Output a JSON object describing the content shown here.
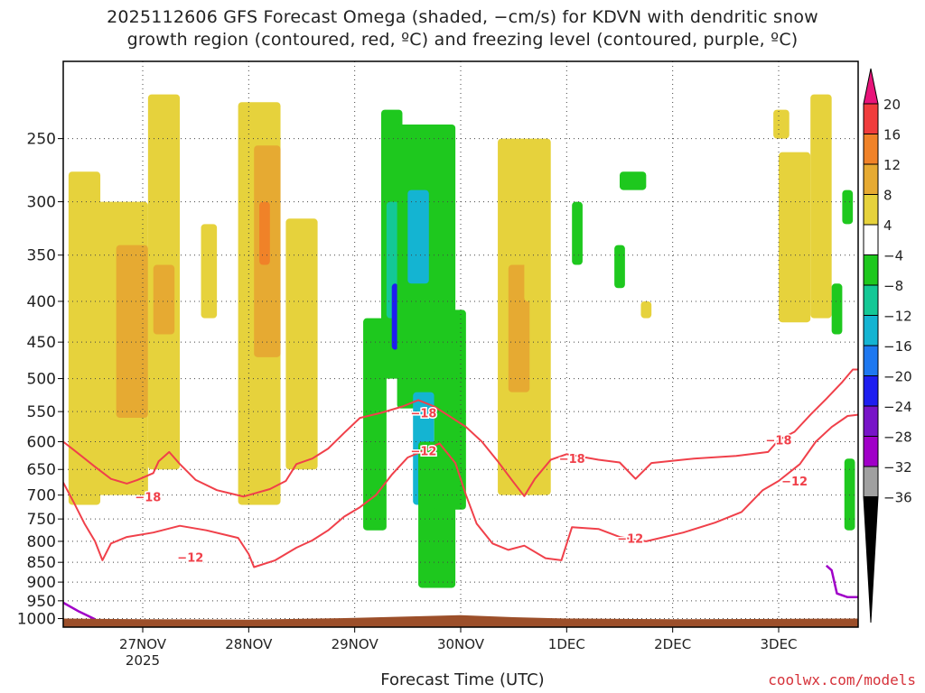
{
  "title_line1": "2025112606 GFS Forecast Omega (shaded, −cm/s) for KDVN with dendritic snow",
  "title_line2": "growth region (contoured, red, ºC) and freezing level (contoured, purple, ºC)",
  "xaxis_title": "Forecast Time (UTC)",
  "credit": "coolwx.com/models",
  "colors": {
    "ground": "#9c4f2a",
    "red_contour": "#f0404a",
    "purple_contour": "#a000c8",
    "grid": "#444444"
  },
  "chart_data": {
    "type": "heatmap",
    "x_ticks": [
      {
        "x": 27.0,
        "label": "27NOV",
        "sublabel": "2025"
      },
      {
        "x": 28.0,
        "label": "28NOV",
        "sublabel": ""
      },
      {
        "x": 29.0,
        "label": "29NOV",
        "sublabel": ""
      },
      {
        "x": 30.0,
        "label": "30NOV",
        "sublabel": ""
      },
      {
        "x": 31.0,
        "label": "1DEC",
        "sublabel": ""
      },
      {
        "x": 32.0,
        "label": "2DEC",
        "sublabel": ""
      },
      {
        "x": 33.0,
        "label": "3DEC",
        "sublabel": ""
      }
    ],
    "xlim": [
      26.25,
      33.75
    ],
    "y_ticks": [
      250,
      300,
      350,
      400,
      450,
      500,
      550,
      600,
      650,
      700,
      750,
      800,
      850,
      900,
      950,
      1000
    ],
    "ylim_hpa": [
      200,
      1025
    ],
    "legend": {
      "labels": [
        "20",
        "16",
        "12",
        "8",
        "4",
        "−4",
        "−8",
        "−12",
        "−16",
        "−20",
        "−24",
        "−28",
        "−32",
        "−36"
      ],
      "colors": [
        "#e8147a",
        "#f03c3c",
        "#f08228",
        "#e6aa32",
        "#e6d23c",
        "#ffffff",
        "#1ec81e",
        "#14c896",
        "#14b4d2",
        "#1e78f0",
        "#1e1ef0",
        "#7814c8",
        "#a000c8",
        "#a0a0a0",
        "#000000"
      ]
    },
    "contour_labels": [
      {
        "text": "−18",
        "x": 27.05,
        "y": 703
      },
      {
        "text": "−18",
        "x": 29.65,
        "y": 552
      },
      {
        "text": "−18",
        "x": 31.05,
        "y": 630
      },
      {
        "text": "−18",
        "x": 33.0,
        "y": 597
      },
      {
        "text": "−12",
        "x": 27.45,
        "y": 837
      },
      {
        "text": "−12",
        "x": 29.65,
        "y": 616
      },
      {
        "text": "−12",
        "x": 31.6,
        "y": 793
      },
      {
        "text": "−12",
        "x": 33.15,
        "y": 672
      }
    ],
    "series": [
      {
        "name": "−18",
        "type": "contour",
        "points": [
          [
            26.25,
            600
          ],
          [
            26.4,
            622
          ],
          [
            26.55,
            645
          ],
          [
            26.7,
            668
          ],
          [
            26.85,
            677
          ],
          [
            26.95,
            670
          ],
          [
            27.1,
            657
          ],
          [
            27.15,
            635
          ],
          [
            27.25,
            618
          ],
          [
            27.35,
            640
          ],
          [
            27.5,
            670
          ],
          [
            27.7,
            690
          ],
          [
            27.95,
            703
          ],
          [
            28.2,
            688
          ],
          [
            28.35,
            672
          ],
          [
            28.45,
            640
          ],
          [
            28.6,
            630
          ],
          [
            28.75,
            612
          ],
          [
            28.9,
            585
          ],
          [
            29.05,
            560
          ],
          [
            29.25,
            552
          ],
          [
            29.45,
            542
          ],
          [
            29.6,
            532
          ],
          [
            29.75,
            542
          ],
          [
            29.9,
            558
          ],
          [
            30.05,
            575
          ],
          [
            30.2,
            600
          ],
          [
            30.35,
            635
          ],
          [
            30.5,
            675
          ],
          [
            30.6,
            702
          ],
          [
            30.7,
            668
          ],
          [
            30.85,
            632
          ],
          [
            31.0,
            622
          ],
          [
            31.3,
            632
          ],
          [
            31.5,
            637
          ],
          [
            31.65,
            668
          ],
          [
            31.8,
            638
          ],
          [
            32.2,
            630
          ],
          [
            32.6,
            625
          ],
          [
            32.9,
            618
          ],
          [
            33.0,
            597
          ],
          [
            33.15,
            583
          ],
          [
            33.3,
            555
          ],
          [
            33.45,
            530
          ],
          [
            33.6,
            505
          ],
          [
            33.7,
            487
          ],
          [
            33.75,
            487
          ]
        ]
      },
      {
        "name": "−12",
        "type": "contour",
        "points": [
          [
            26.25,
            675
          ],
          [
            26.35,
            715
          ],
          [
            26.45,
            760
          ],
          [
            26.55,
            800
          ],
          [
            26.62,
            845
          ],
          [
            26.7,
            805
          ],
          [
            26.85,
            790
          ],
          [
            27.1,
            780
          ],
          [
            27.35,
            765
          ],
          [
            27.6,
            775
          ],
          [
            27.9,
            792
          ],
          [
            28.0,
            830
          ],
          [
            28.05,
            862
          ],
          [
            28.25,
            845
          ],
          [
            28.45,
            815
          ],
          [
            28.6,
            798
          ],
          [
            28.75,
            775
          ],
          [
            28.9,
            745
          ],
          [
            29.05,
            725
          ],
          [
            29.2,
            700
          ],
          [
            29.35,
            660
          ],
          [
            29.5,
            628
          ],
          [
            29.65,
            616
          ],
          [
            29.8,
            603
          ],
          [
            29.95,
            638
          ],
          [
            30.05,
            700
          ],
          [
            30.15,
            760
          ],
          [
            30.3,
            805
          ],
          [
            30.45,
            820
          ],
          [
            30.6,
            810
          ],
          [
            30.8,
            840
          ],
          [
            30.95,
            845
          ],
          [
            31.05,
            768
          ],
          [
            31.3,
            772
          ],
          [
            31.5,
            790
          ],
          [
            31.75,
            800
          ],
          [
            32.1,
            780
          ],
          [
            32.4,
            758
          ],
          [
            32.65,
            735
          ],
          [
            32.85,
            690
          ],
          [
            33.0,
            672
          ],
          [
            33.2,
            640
          ],
          [
            33.35,
            600
          ],
          [
            33.5,
            575
          ],
          [
            33.65,
            557
          ],
          [
            33.75,
            555
          ]
        ]
      },
      {
        "name": "freezing-level-left",
        "type": "contour",
        "points": [
          [
            26.25,
            955
          ],
          [
            26.4,
            980
          ],
          [
            26.55,
            1002
          ]
        ]
      },
      {
        "name": "freezing-level-right",
        "type": "contour",
        "points": [
          [
            33.45,
            858
          ],
          [
            33.5,
            870
          ],
          [
            33.55,
            930
          ],
          [
            33.65,
            940
          ],
          [
            33.75,
            940
          ]
        ]
      },
      {
        "name": "ground-level",
        "type": "area",
        "points": [
          [
            26.25,
            1000
          ],
          [
            27.0,
            1002
          ],
          [
            28.0,
            1003
          ],
          [
            29.0,
            998
          ],
          [
            29.5,
            994
          ],
          [
            30.0,
            990
          ],
          [
            30.5,
            996
          ],
          [
            31.0,
            1000
          ],
          [
            32.0,
            1002
          ],
          [
            33.0,
            1001
          ],
          [
            33.75,
            1000
          ]
        ]
      }
    ],
    "omega_patches": [
      {
        "x0": 26.3,
        "x1": 26.6,
        "p0": 275,
        "p1": 720,
        "value": 5
      },
      {
        "x0": 26.55,
        "x1": 27.05,
        "p0": 300,
        "p1": 700,
        "value": 6
      },
      {
        "x0": 26.75,
        "x1": 27.05,
        "p0": 340,
        "p1": 560,
        "value": 9
      },
      {
        "x0": 27.05,
        "x1": 27.35,
        "p0": 220,
        "p1": 650,
        "value": 5
      },
      {
        "x0": 27.1,
        "x1": 27.3,
        "p0": 360,
        "p1": 440,
        "value": 9
      },
      {
        "x0": 27.55,
        "x1": 27.7,
        "p0": 320,
        "p1": 420,
        "value": 5
      },
      {
        "x0": 27.9,
        "x1": 28.3,
        "p0": 225,
        "p1": 720,
        "value": 5
      },
      {
        "x0": 28.05,
        "x1": 28.3,
        "p0": 255,
        "p1": 470,
        "value": 9
      },
      {
        "x0": 28.1,
        "x1": 28.2,
        "p0": 300,
        "p1": 360,
        "value": 13
      },
      {
        "x0": 28.35,
        "x1": 28.65,
        "p0": 315,
        "p1": 650,
        "value": 5
      },
      {
        "x0": 29.08,
        "x1": 29.3,
        "p0": 420,
        "p1": 775,
        "value": -6
      },
      {
        "x0": 29.25,
        "x1": 29.45,
        "p0": 230,
        "p1": 500,
        "value": -6
      },
      {
        "x0": 29.3,
        "x1": 29.42,
        "p0": 300,
        "p1": 420,
        "value": -11
      },
      {
        "x0": 29.35,
        "x1": 29.41,
        "p0": 380,
        "p1": 460,
        "value": -21
      },
      {
        "x0": 29.4,
        "x1": 29.95,
        "p0": 240,
        "p1": 545,
        "value": -6
      },
      {
        "x0": 29.5,
        "x1": 29.7,
        "p0": 290,
        "p1": 380,
        "value": -13
      },
      {
        "x0": 29.55,
        "x1": 29.75,
        "p0": 520,
        "p1": 720,
        "value": -13
      },
      {
        "x0": 29.6,
        "x1": 29.95,
        "p0": 600,
        "p1": 915,
        "value": -6
      },
      {
        "x0": 29.75,
        "x1": 30.05,
        "p0": 410,
        "p1": 730,
        "value": -6
      },
      {
        "x0": 30.35,
        "x1": 30.85,
        "p0": 250,
        "p1": 700,
        "value": 5
      },
      {
        "x0": 30.45,
        "x1": 30.65,
        "p0": 360,
        "p1": 520,
        "value": 9
      },
      {
        "x0": 30.6,
        "x1": 30.8,
        "p0": 330,
        "p1": 400,
        "value": 5
      },
      {
        "x0": 31.05,
        "x1": 31.15,
        "p0": 300,
        "p1": 360,
        "value": -6
      },
      {
        "x0": 31.45,
        "x1": 31.55,
        "p0": 340,
        "p1": 385,
        "value": -6
      },
      {
        "x0": 31.5,
        "x1": 31.75,
        "p0": 275,
        "p1": 290,
        "value": -6
      },
      {
        "x0": 31.7,
        "x1": 31.8,
        "p0": 400,
        "p1": 420,
        "value": 5
      },
      {
        "x0": 32.95,
        "x1": 33.1,
        "p0": 230,
        "p1": 250,
        "value": 5
      },
      {
        "x0": 33.0,
        "x1": 33.3,
        "p0": 260,
        "p1": 425,
        "value": 5
      },
      {
        "x0": 33.05,
        "x1": 33.15,
        "p0": 330,
        "p1": 370,
        "value": 5
      },
      {
        "x0": 33.3,
        "x1": 33.5,
        "p0": 220,
        "p1": 420,
        "value": 5
      },
      {
        "x0": 33.5,
        "x1": 33.6,
        "p0": 380,
        "p1": 440,
        "value": -6
      },
      {
        "x0": 33.6,
        "x1": 33.7,
        "p0": 290,
        "p1": 320,
        "value": -6
      },
      {
        "x0": 33.62,
        "x1": 33.72,
        "p0": 630,
        "p1": 775,
        "value": -6
      }
    ]
  }
}
